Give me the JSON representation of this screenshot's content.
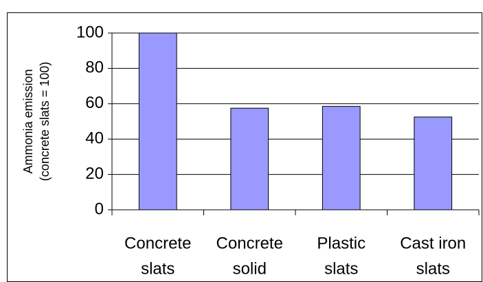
{
  "chart_data": {
    "type": "bar",
    "ylabel": [
      "Ammonia emission",
      "(concrete slats = 100)"
    ],
    "categories": [
      [
        "Concrete",
        "slats"
      ],
      [
        "Concrete",
        "solid"
      ],
      [
        "Plastic",
        "slats"
      ],
      [
        "Cast iron",
        "slats"
      ]
    ],
    "values": [
      100,
      57.5,
      58.5,
      52.5
    ],
    "color": "#9999ff",
    "ylim": [
      0,
      100
    ],
    "yticks": [
      0,
      20,
      40,
      60,
      80,
      100
    ],
    "grid": true
  }
}
